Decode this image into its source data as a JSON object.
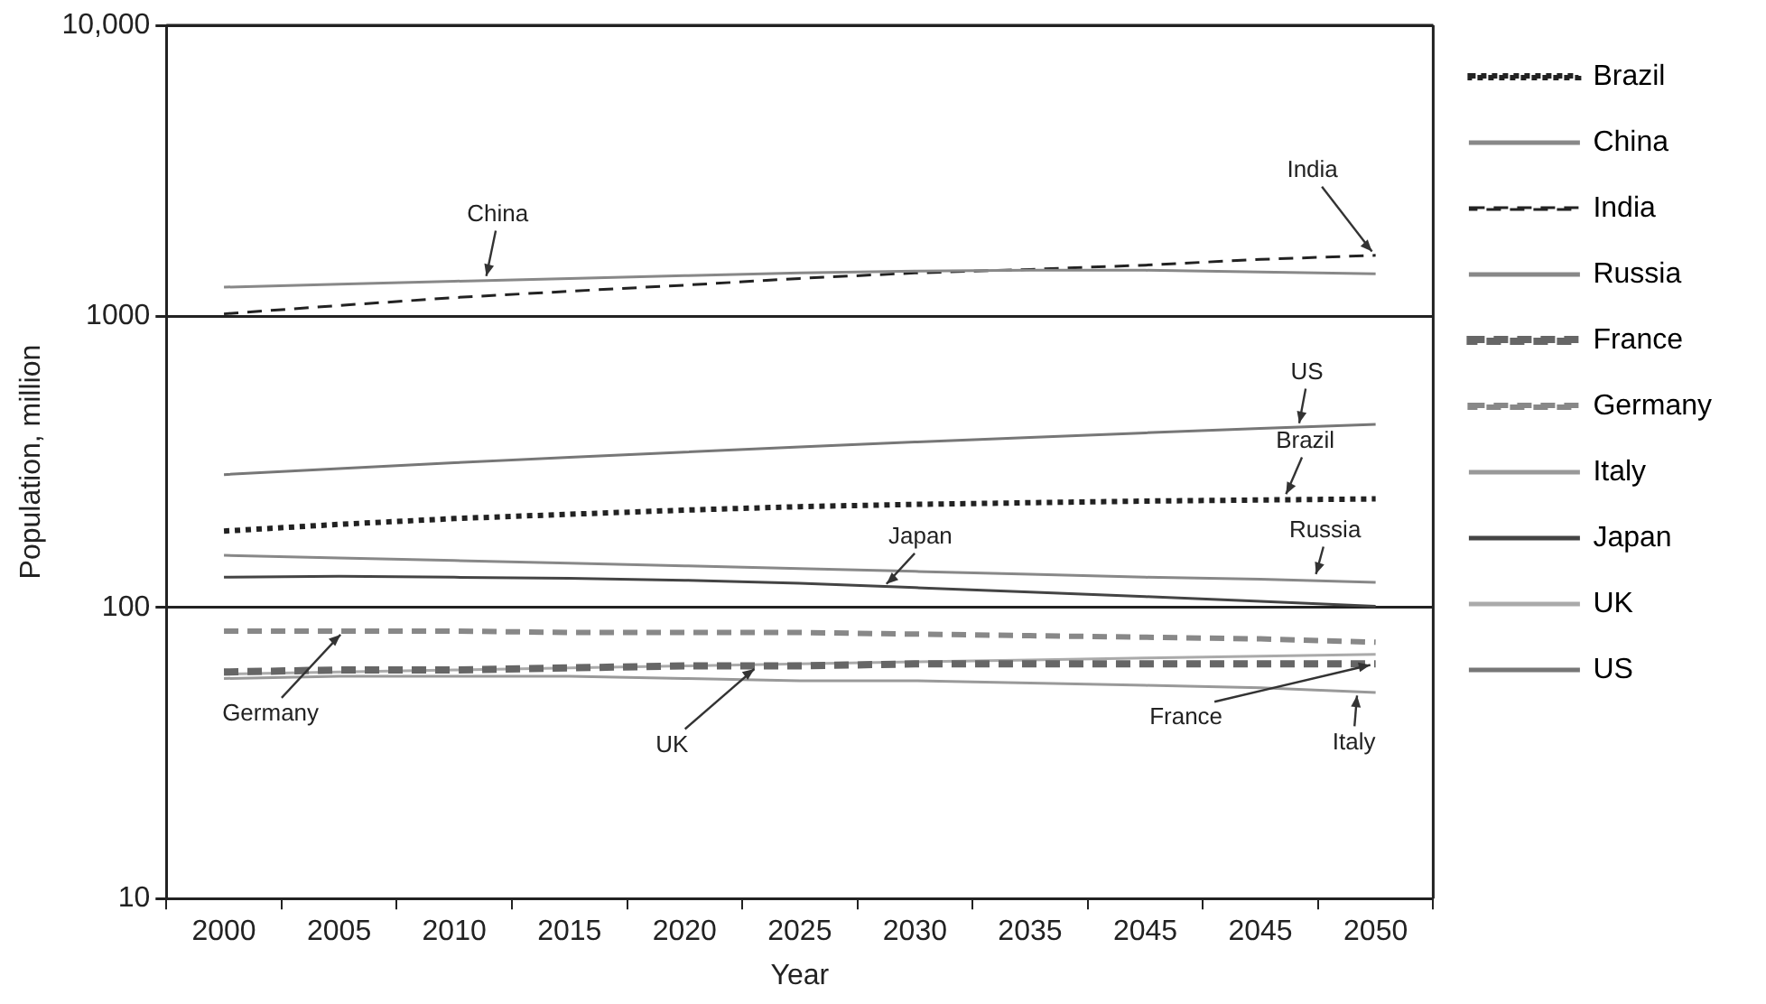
{
  "chart_data": {
    "type": "line",
    "xlabel": "Year",
    "ylabel": "Population, million",
    "categories": [
      "2000",
      "2005",
      "2010",
      "2015",
      "2020",
      "2025",
      "2030",
      "2035",
      "2045",
      "2045",
      "2050"
    ],
    "log": "y",
    "ylim": [
      10,
      10000
    ],
    "yticks": [
      10,
      100,
      1000,
      {
        "value": 10000,
        "label": "10,000"
      }
    ],
    "grid": "y",
    "legend": "right",
    "marker": "none",
    "series": [
      {
        "name": "Brazil",
        "color": "#222222",
        "line_style": "dotted",
        "values": [
          183,
          193,
          202,
          209,
          216,
          222,
          226,
          229,
          232,
          234,
          236
        ]
      },
      {
        "name": "China",
        "color": "#888888",
        "line_style": "solid",
        "values": [
          1260,
          1290,
          1320,
          1350,
          1380,
          1410,
          1430,
          1440,
          1440,
          1420,
          1400
        ]
      },
      {
        "name": "India",
        "color": "#222222",
        "line_style": "dashed",
        "values": [
          1020,
          1090,
          1160,
          1220,
          1280,
          1350,
          1410,
          1450,
          1500,
          1570,
          1620
        ]
      },
      {
        "name": "Russia",
        "color": "#888888",
        "line_style": "solid",
        "values": [
          151,
          148,
          145,
          142,
          139,
          136,
          133,
          130,
          127,
          125,
          122
        ]
      },
      {
        "name": "France",
        "color": "#666666",
        "line_style": "dashed",
        "values": [
          60,
          61,
          61,
          62,
          63,
          63,
          64,
          64,
          64,
          64,
          64
        ]
      },
      {
        "name": "Germany",
        "color": "#888888",
        "line_style": "dashed",
        "values": [
          83,
          83,
          83,
          82,
          82,
          82,
          81,
          80,
          79,
          78,
          76
        ]
      },
      {
        "name": "Italy",
        "color": "#999999",
        "line_style": "solid",
        "values": [
          57,
          58,
          58,
          58,
          57,
          56,
          56,
          55,
          54,
          53,
          51
        ]
      },
      {
        "name": "Japan",
        "color": "#444444",
        "line_style": "solid",
        "values": [
          127,
          128,
          127,
          126,
          124,
          121,
          117,
          113,
          109,
          105,
          101
        ]
      },
      {
        "name": "UK",
        "color": "#aaaaaa",
        "line_style": "solid",
        "values": [
          59,
          60,
          61,
          62,
          63,
          64,
          65,
          66,
          67,
          68,
          69
        ]
      },
      {
        "name": "US",
        "color": "#777777",
        "line_style": "solid",
        "values": [
          286,
          300,
          314,
          328,
          342,
          356,
          370,
          384,
          398,
          412,
          426
        ]
      }
    ],
    "annotations": [
      {
        "text": "China",
        "x": "2010",
        "y": 1320
      },
      {
        "text": "India",
        "x": "2050",
        "y": 1620
      },
      {
        "text": "US",
        "x": "2050",
        "y": 412
      },
      {
        "text": "Brazil",
        "x": "2050",
        "y": 236
      },
      {
        "text": "Russia",
        "x": "2050",
        "y": 125
      },
      {
        "text": "Japan",
        "x": "2030",
        "y": 117
      },
      {
        "text": "Germany",
        "x": "2005",
        "y": 83
      },
      {
        "text": "UK",
        "x": "2020",
        "y": 63
      },
      {
        "text": "France",
        "x": "2050",
        "y": 64
      },
      {
        "text": "Italy",
        "x": "2050",
        "y": 52
      }
    ]
  }
}
